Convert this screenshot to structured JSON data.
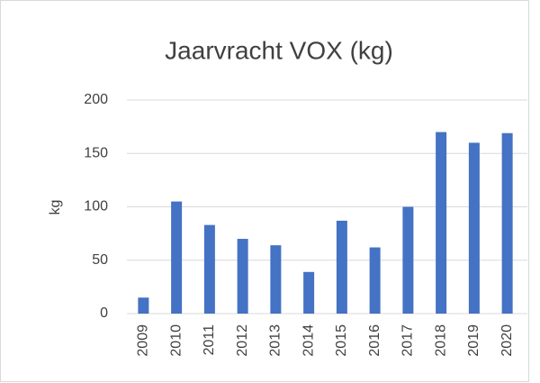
{
  "chart_data": {
    "type": "bar",
    "title": "Jaarvracht VOX (kg)",
    "y_label": "kg",
    "categories": [
      "2009",
      "2010",
      "2011",
      "2012",
      "2013",
      "2014",
      "2015",
      "2016",
      "2017",
      "2018",
      "2019",
      "2020"
    ],
    "values": [
      15,
      105,
      83,
      70,
      64,
      39,
      87,
      62,
      100,
      170,
      160,
      169
    ],
    "color": "#4472c4",
    "ylim": [
      0,
      200
    ],
    "yticks": [
      0,
      50,
      100,
      150,
      200
    ],
    "grid": true
  }
}
